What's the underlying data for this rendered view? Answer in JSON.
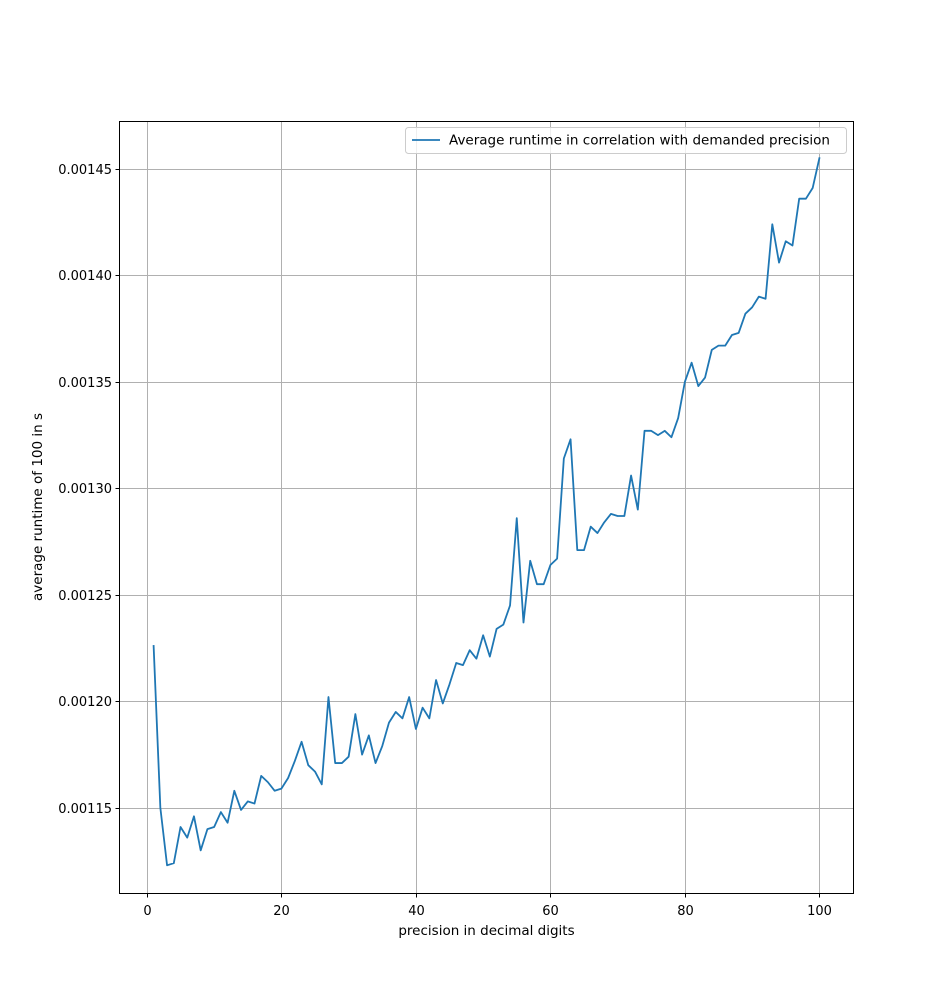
{
  "chart_data": {
    "type": "line",
    "title": "",
    "xlabel": "precision in decimal digits",
    "ylabel": "average runtime of 100 in s",
    "xlim": [
      -4,
      105
    ],
    "ylim": [
      0.00111,
      0.001472
    ],
    "xticks": [
      0,
      20,
      40,
      60,
      80,
      100
    ],
    "xtick_labels": [
      "0",
      "20",
      "40",
      "60",
      "80",
      "100"
    ],
    "yticks": [
      0.00115,
      0.0012,
      0.00125,
      0.0013,
      0.00135,
      0.0014,
      0.00145
    ],
    "ytick_labels": [
      "0.00115",
      "0.00120",
      "0.00125",
      "0.00130",
      "0.00135",
      "0.00140",
      "0.00145"
    ],
    "grid": true,
    "legend_position": "top-right",
    "colors": {
      "series": "#1f77b4",
      "grid": "#b0b0b0",
      "axes": "#000000"
    },
    "series": [
      {
        "name": "Average runtime in correlation with demanded precision",
        "x": [
          1,
          2,
          3,
          4,
          5,
          6,
          7,
          8,
          9,
          10,
          11,
          12,
          13,
          14,
          15,
          16,
          17,
          18,
          19,
          20,
          21,
          22,
          23,
          24,
          25,
          26,
          27,
          28,
          29,
          30,
          31,
          32,
          33,
          34,
          35,
          36,
          37,
          38,
          39,
          40,
          41,
          42,
          43,
          44,
          45,
          46,
          47,
          48,
          49,
          50,
          51,
          52,
          53,
          54,
          55,
          56,
          57,
          58,
          59,
          60,
          61,
          62,
          63,
          64,
          65,
          66,
          67,
          68,
          69,
          70,
          71,
          72,
          73,
          74,
          75,
          76,
          77,
          78,
          79,
          80,
          81,
          82,
          83,
          84,
          85,
          86,
          87,
          88,
          89,
          90,
          91,
          92,
          93,
          94,
          95,
          96,
          97,
          98,
          99,
          100
        ],
        "y": [
          0.001226,
          0.00115,
          0.001123,
          0.001124,
          0.001141,
          0.001136,
          0.001146,
          0.00113,
          0.00114,
          0.001141,
          0.001148,
          0.001143,
          0.001158,
          0.001149,
          0.001153,
          0.001152,
          0.001165,
          0.001162,
          0.001158,
          0.001159,
          0.001164,
          0.001172,
          0.001181,
          0.00117,
          0.001167,
          0.001161,
          0.001202,
          0.001171,
          0.001171,
          0.001174,
          0.001194,
          0.001175,
          0.001184,
          0.001171,
          0.001179,
          0.00119,
          0.001195,
          0.001192,
          0.001202,
          0.001187,
          0.001197,
          0.001192,
          0.00121,
          0.001199,
          0.001208,
          0.001218,
          0.001217,
          0.001224,
          0.00122,
          0.001231,
          0.001221,
          0.001234,
          0.001236,
          0.001245,
          0.001286,
          0.001237,
          0.001266,
          0.001255,
          0.001255,
          0.001264,
          0.001267,
          0.001314,
          0.001323,
          0.001271,
          0.001271,
          0.001282,
          0.001279,
          0.001284,
          0.001288,
          0.001287,
          0.001287,
          0.001306,
          0.00129,
          0.001327,
          0.001327,
          0.001325,
          0.001327,
          0.001324,
          0.001333,
          0.00135,
          0.001359,
          0.001348,
          0.001352,
          0.001365,
          0.001367,
          0.001367,
          0.001372,
          0.001373,
          0.001382,
          0.001385,
          0.00139,
          0.001389,
          0.001424,
          0.001406,
          0.001416,
          0.001414,
          0.001436,
          0.001436,
          0.001441,
          0.001455
        ]
      }
    ]
  }
}
